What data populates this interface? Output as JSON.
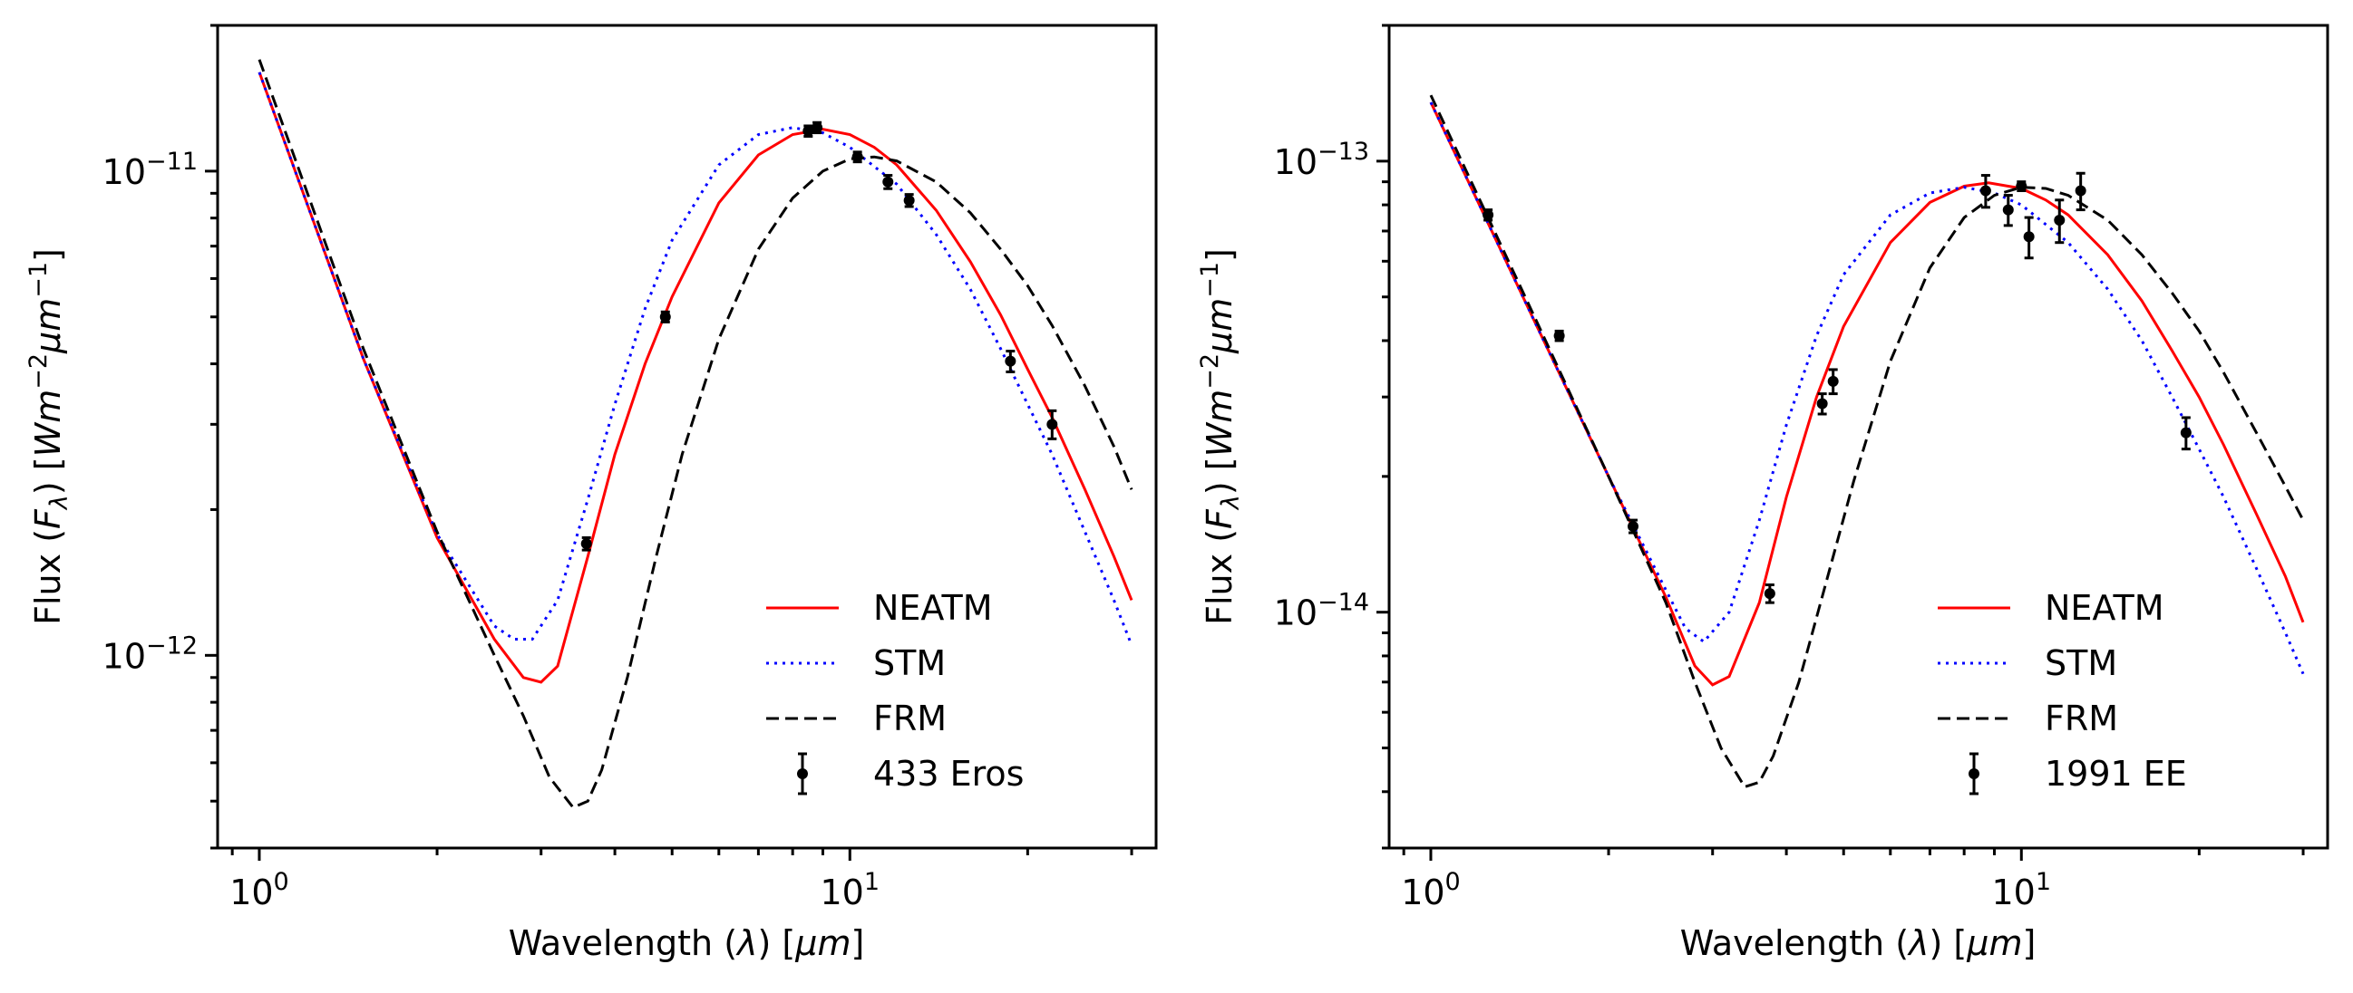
{
  "chart_data": [
    {
      "type": "line",
      "xlabel": "Wavelength (λ) [μm]",
      "ylabel": "Flux (F_λ) [Wm⁻²μm⁻¹]",
      "xscale": "log",
      "yscale": "log",
      "xlim": [
        0.85,
        33
      ],
      "ylim": [
        4e-13,
        2e-11
      ],
      "xticks": [
        {
          "value": 1,
          "base": "10",
          "exp": "0"
        },
        {
          "value": 10,
          "base": "10",
          "exp": "1"
        }
      ],
      "yticks": [
        {
          "value": 1e-12,
          "base": "10",
          "exp": "−12"
        },
        {
          "value": 1e-11,
          "base": "10",
          "exp": "−11"
        }
      ],
      "legend": "lower-right",
      "series": [
        {
          "name": "NEATM",
          "color": "#ff0000",
          "style": "solid",
          "x": [
            1.0,
            1.5,
            2.0,
            2.5,
            2.8,
            3.0,
            3.2,
            3.6,
            4.0,
            4.5,
            5.0,
            6.0,
            7.0,
            8.0,
            9.0,
            10.0,
            11.0,
            12.0,
            14.0,
            16.0,
            18.0,
            20.0,
            22.0,
            25.0,
            28.0,
            30.0
          ],
          "y": [
            1.6e-11,
            4.1e-12,
            1.75e-12,
            1.08e-12,
            9e-13,
            8.8e-13,
            9.5e-13,
            1.6e-12,
            2.6e-12,
            4e-12,
            5.5e-12,
            8.6e-12,
            1.08e-11,
            1.19e-11,
            1.22e-11,
            1.19e-11,
            1.12e-11,
            1.03e-11,
            8.3e-12,
            6.5e-12,
            5.05e-12,
            3.9e-12,
            3.1e-12,
            2.2e-12,
            1.6e-12,
            1.3e-12
          ]
        },
        {
          "name": "STM",
          "color": "#0000ff",
          "style": "dotted",
          "x": [
            1.0,
            1.5,
            2.0,
            2.5,
            2.7,
            2.9,
            3.2,
            3.6,
            4.0,
            4.5,
            5.0,
            6.0,
            7.0,
            8.0,
            9.0,
            10.0,
            12.0,
            14.0,
            16.0,
            18.0,
            20.0,
            22.0,
            25.0,
            28.0,
            30.0
          ],
          "y": [
            1.6e-11,
            4.1e-12,
            1.78e-12,
            1.15e-12,
            1.08e-12,
            1.08e-12,
            1.3e-12,
            2.1e-12,
            3.3e-12,
            5.2e-12,
            7.2e-12,
            1.03e-11,
            1.19e-11,
            1.23e-11,
            1.2e-11,
            1.12e-11,
            9.4e-12,
            7.4e-12,
            5.7e-12,
            4.3e-12,
            3.3e-12,
            2.6e-12,
            1.8e-12,
            1.3e-12,
            1.05e-12
          ]
        },
        {
          "name": "FRM",
          "color": "#000000",
          "style": "dashed",
          "x": [
            1.0,
            1.5,
            2.0,
            2.5,
            2.8,
            3.1,
            3.4,
            3.6,
            3.8,
            4.2,
            4.7,
            5.2,
            6.0,
            7.0,
            8.0,
            9.0,
            10.0,
            11.0,
            12.0,
            14.0,
            16.0,
            18.0,
            20.0,
            22.0,
            25.0,
            28.0,
            30.0
          ],
          "y": [
            1.7e-11,
            4.3e-12,
            1.8e-12,
            1e-12,
            7.5e-13,
            5.6e-13,
            4.85e-13,
            5e-13,
            5.8e-13,
            9e-13,
            1.6e-12,
            2.6e-12,
            4.5e-12,
            6.9e-12,
            8.8e-12,
            1e-11,
            1.06e-11,
            1.07e-11,
            1.05e-11,
            9.5e-12,
            8.2e-12,
            6.9e-12,
            5.8e-12,
            4.8e-12,
            3.6e-12,
            2.7e-12,
            2.2e-12
          ]
        }
      ],
      "observations": {
        "name": "433 Eros",
        "color": "#000000",
        "x": [
          3.58,
          4.87,
          8.5,
          8.8,
          10.3,
          11.6,
          12.6,
          18.7,
          22.0
        ],
        "y": [
          1.7e-12,
          5e-12,
          1.21e-11,
          1.23e-11,
          1.07e-11,
          9.5e-12,
          8.7e-12,
          4.05e-12,
          3e-12
        ],
        "yerr": [
          5e-14,
          1.2e-13,
          3e-13,
          3e-13,
          2.5e-13,
          3e-13,
          2.5e-13,
          2e-13,
          2e-13
        ]
      }
    },
    {
      "type": "line",
      "xlabel": "Wavelength (λ) [μm]",
      "ylabel": "Flux (F_λ) [Wm⁻²μm⁻¹]",
      "xscale": "log",
      "yscale": "log",
      "xlim": [
        0.85,
        33
      ],
      "ylim": [
        3e-15,
        2e-13
      ],
      "xticks": [
        {
          "value": 1,
          "base": "10",
          "exp": "0"
        },
        {
          "value": 10,
          "base": "10",
          "exp": "1"
        }
      ],
      "yticks": [
        {
          "value": 1e-14,
          "base": "10",
          "exp": "−14"
        },
        {
          "value": 1e-13,
          "base": "10",
          "exp": "−13"
        }
      ],
      "legend": "lower-right",
      "series": [
        {
          "name": "NEATM",
          "color": "#ff0000",
          "style": "solid",
          "x": [
            1.0,
            1.5,
            2.0,
            2.5,
            2.8,
            3.0,
            3.2,
            3.6,
            4.0,
            4.5,
            5.0,
            6.0,
            7.0,
            8.0,
            8.8,
            10.0,
            11.0,
            12.0,
            14.0,
            16.0,
            18.0,
            20.0,
            22.0,
            25.0,
            28.0,
            30.0
          ],
          "y": [
            1.35e-13,
            4.4e-14,
            2e-14,
            1.08e-14,
            7.6e-15,
            6.9e-15,
            7.2e-15,
            1.05e-14,
            1.8e-14,
            3e-14,
            4.3e-14,
            6.6e-14,
            8.1e-14,
            8.8e-14,
            8.95e-14,
            8.7e-14,
            8.2e-14,
            7.6e-14,
            6.2e-14,
            4.9e-14,
            3.8e-14,
            3e-14,
            2.35e-14,
            1.65e-14,
            1.2e-14,
            9.5e-15
          ]
        },
        {
          "name": "STM",
          "color": "#0000ff",
          "style": "dotted",
          "x": [
            1.0,
            1.5,
            2.0,
            2.5,
            2.7,
            2.9,
            3.2,
            3.6,
            4.0,
            4.5,
            5.0,
            6.0,
            7.0,
            8.0,
            9.0,
            10.0,
            12.0,
            14.0,
            16.0,
            18.0,
            20.0,
            22.0,
            25.0,
            28.0,
            30.0
          ],
          "y": [
            1.35e-13,
            4.4e-14,
            2e-14,
            1.12e-14,
            9.2e-15,
            8.6e-15,
            1e-14,
            1.6e-14,
            2.6e-14,
            4.1e-14,
            5.6e-14,
            7.6e-14,
            8.5e-14,
            8.75e-14,
            8.5e-14,
            8e-14,
            6.6e-14,
            5.2e-14,
            4e-14,
            3e-14,
            2.3e-14,
            1.8e-14,
            1.25e-14,
            9e-15,
            7.3e-15
          ]
        },
        {
          "name": "FRM",
          "color": "#000000",
          "style": "dashed",
          "x": [
            1.0,
            1.5,
            2.0,
            2.5,
            2.8,
            3.1,
            3.4,
            3.6,
            3.8,
            4.2,
            4.7,
            5.2,
            6.0,
            7.0,
            8.0,
            9.0,
            10.0,
            11.0,
            12.0,
            14.0,
            16.0,
            18.0,
            20.0,
            22.0,
            25.0,
            28.0,
            30.0
          ],
          "y": [
            1.4e-13,
            4.5e-14,
            2e-14,
            1.05e-14,
            7e-15,
            5e-15,
            4.1e-15,
            4.2e-15,
            4.8e-15,
            7e-15,
            1.2e-14,
            1.95e-14,
            3.6e-14,
            5.8e-14,
            7.5e-14,
            8.4e-14,
            8.75e-14,
            8.7e-14,
            8.4e-14,
            7.4e-14,
            6.2e-14,
            5.1e-14,
            4.2e-14,
            3.4e-14,
            2.5e-14,
            1.9e-14,
            1.6e-14
          ]
        }
      ],
      "observations": {
        "name": "1991 EE",
        "color": "#000000",
        "x": [
          1.25,
          1.65,
          2.2,
          3.75,
          4.6,
          4.8,
          8.7,
          9.5,
          10.0,
          10.3,
          11.6,
          12.6,
          19.0
        ],
        "y": [
          7.6e-14,
          4.1e-14,
          1.55e-14,
          1.1e-14,
          2.9e-14,
          3.25e-14,
          8.6e-14,
          7.8e-14,
          8.8e-14,
          6.8e-14,
          7.4e-14,
          8.6e-14,
          2.5e-14
        ],
        "yerr": [
          2e-15,
          1e-15,
          5e-16,
          5e-16,
          1.5e-15,
          2e-15,
          7e-15,
          6e-15,
          2e-15,
          7e-15,
          8e-15,
          8e-15,
          2e-15
        ]
      }
    }
  ]
}
